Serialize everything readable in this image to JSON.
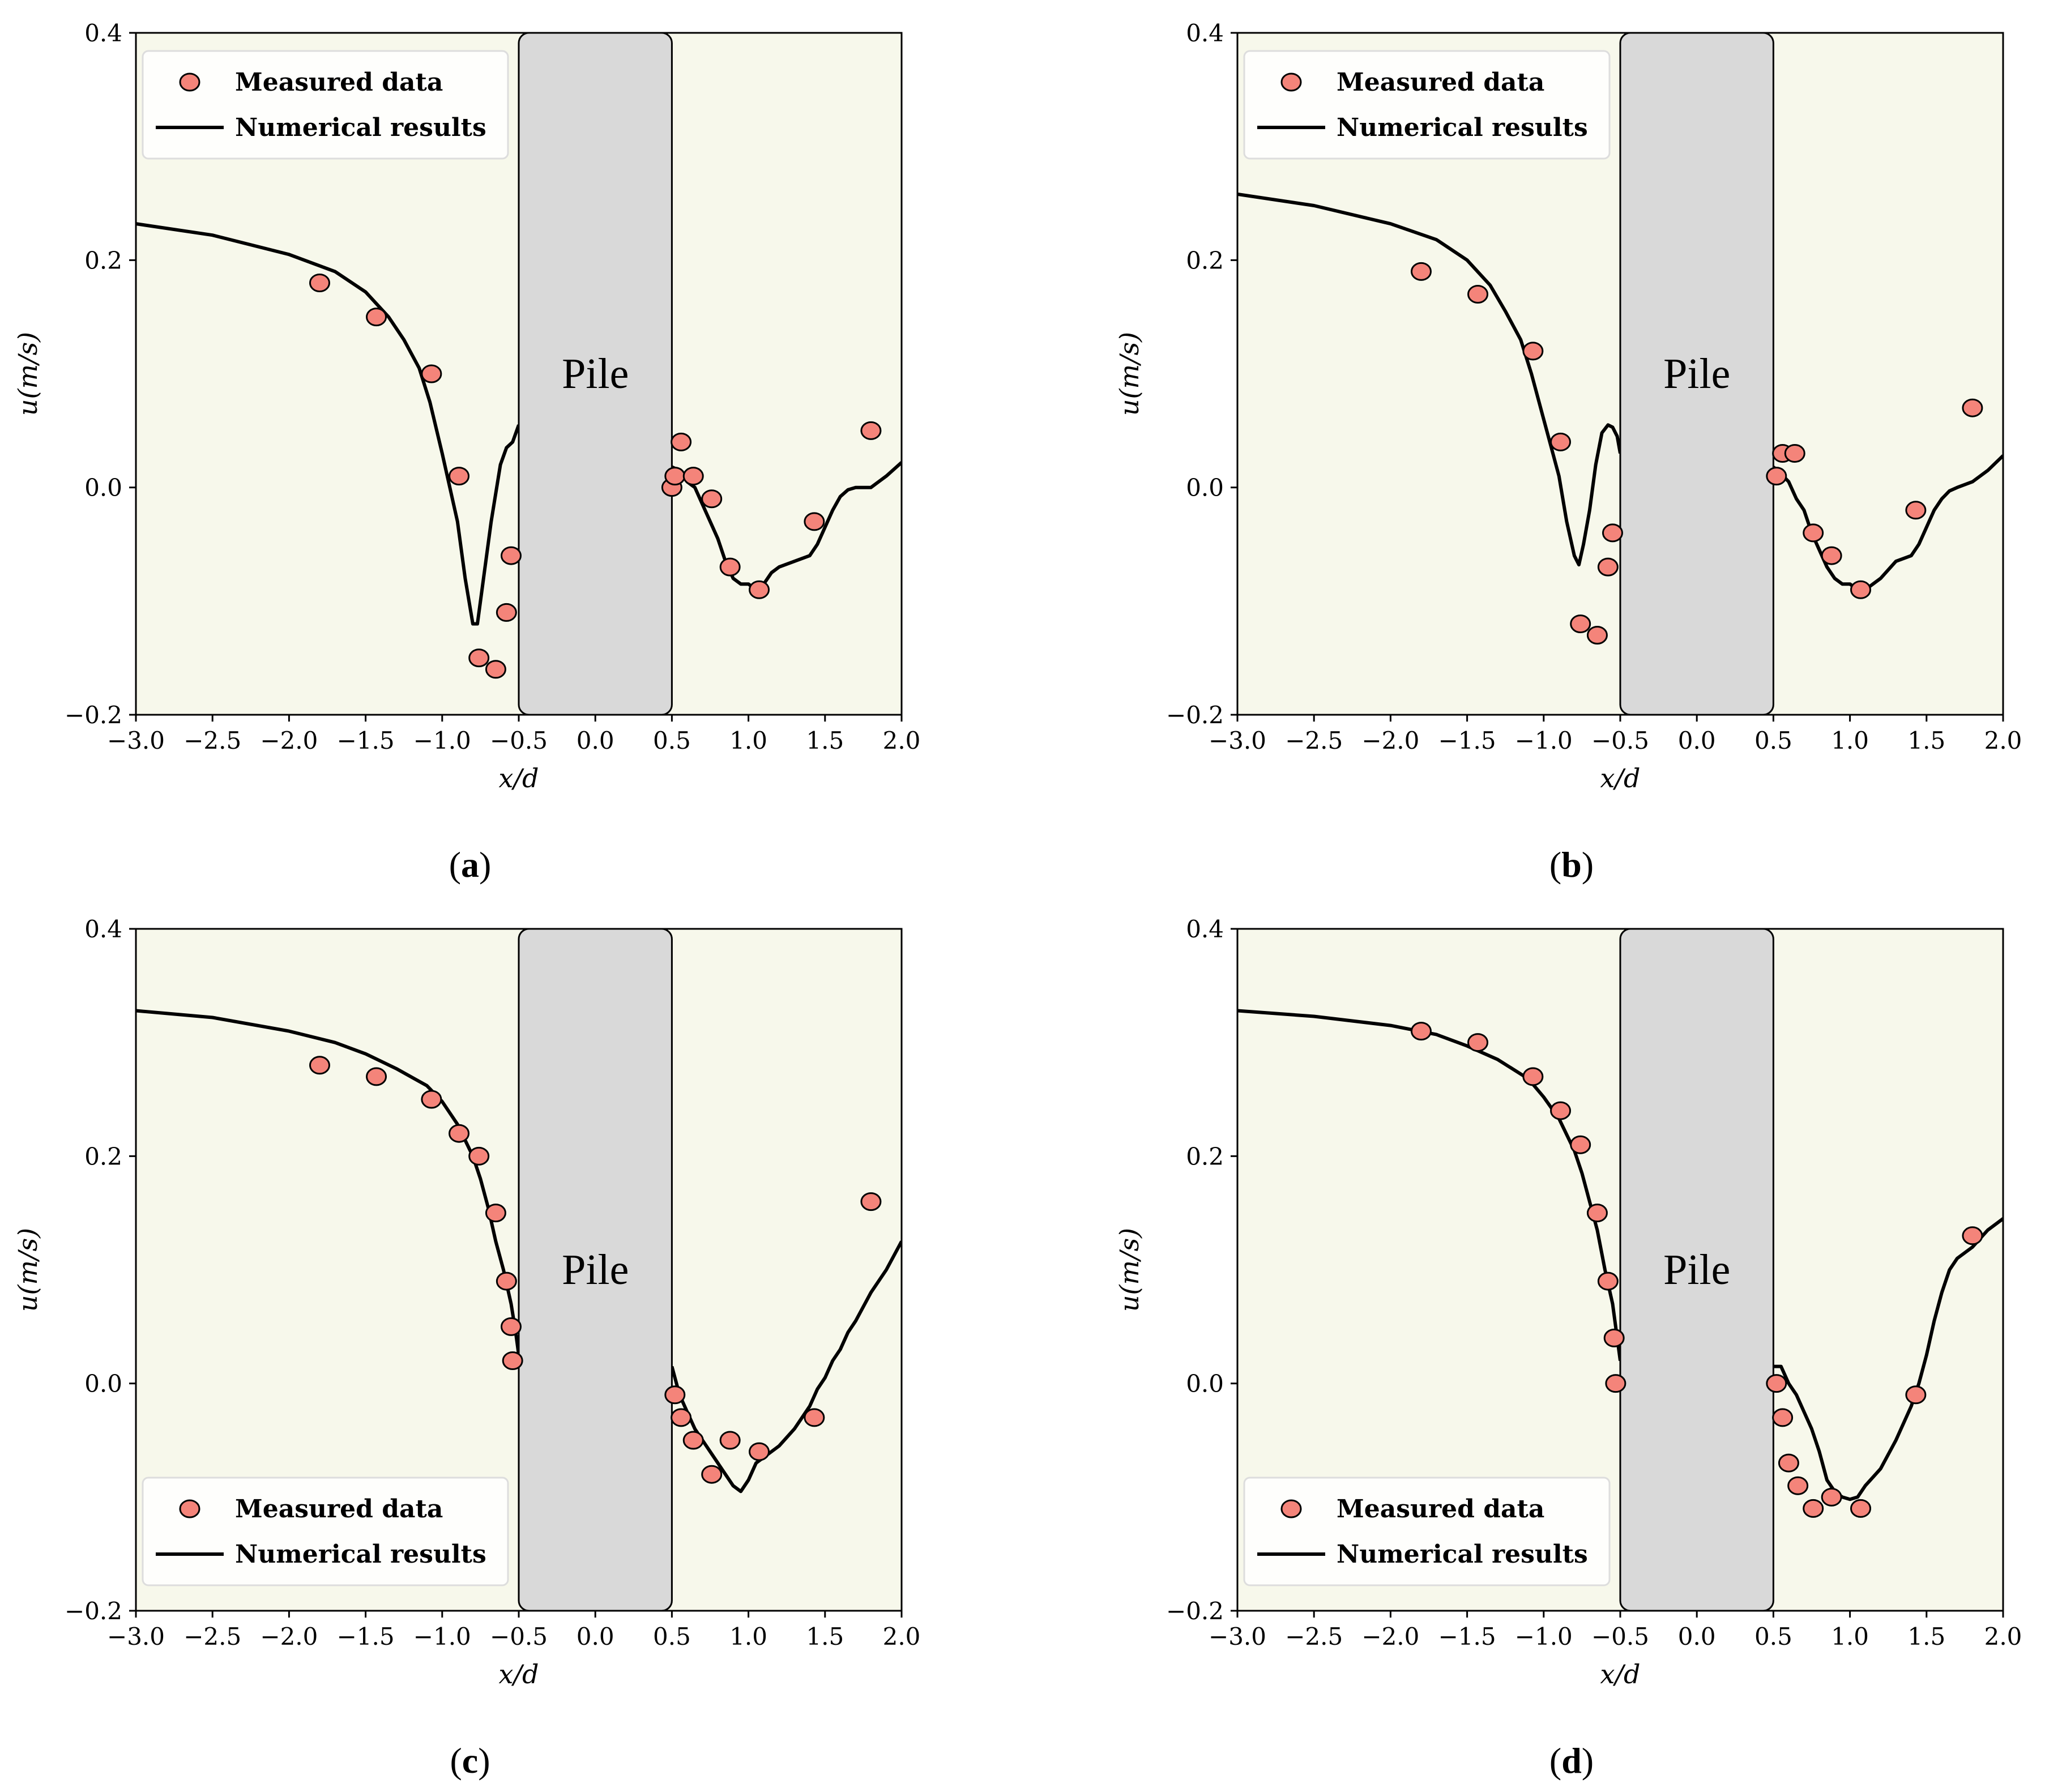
{
  "figure": {
    "captions": [
      "(a)",
      "(b)",
      "(c)",
      "(d)"
    ]
  },
  "colors": {
    "plot_bg": "#f7f8eb",
    "pile_fill": "#d9d9d9",
    "marker_fill": "#f4847a",
    "marker_edge": "#000000",
    "line": "#000000",
    "legend_bg": "#ffffff"
  },
  "chart_data": [
    {
      "panel": "a",
      "type": "scatter",
      "title": "",
      "xlabel": "x/d",
      "ylabel": "u(m/s)",
      "xlim": [
        -3.0,
        2.0
      ],
      "ylim": [
        -0.2,
        0.4
      ],
      "xticks": [
        -3.0,
        -2.5,
        -2.0,
        -1.5,
        -1.0,
        -0.5,
        0.0,
        0.5,
        1.0,
        1.5,
        2.0
      ],
      "xtick_labels": [
        "−3.0",
        "−2.5",
        "−2.0",
        "−1.5",
        "−1.0",
        "−0.5",
        "0.0",
        "0.5",
        "1.0",
        "1.5",
        "2.0"
      ],
      "yticks": [
        -0.2,
        0.0,
        0.2,
        0.4
      ],
      "ytick_labels": [
        "−0.2",
        "0.0",
        "0.2",
        "0.4"
      ],
      "pile": {
        "label": "Pile",
        "x_range": [
          -0.5,
          0.5
        ]
      },
      "legend": {
        "position": "top-left",
        "entries": [
          "Measured data",
          "Numerical results"
        ]
      },
      "caption": "(a)",
      "measured": {
        "name": "Measured data",
        "x": [
          -1.8,
          -1.43,
          -1.07,
          -0.89,
          -0.76,
          -0.65,
          -0.58,
          -0.55,
          0.5,
          0.52,
          0.56,
          0.64,
          0.76,
          0.88,
          1.07,
          1.43,
          1.8
        ],
        "y": [
          0.18,
          0.15,
          0.1,
          0.01,
          -0.15,
          -0.16,
          -0.11,
          -0.06,
          0.0,
          0.01,
          0.04,
          0.01,
          -0.01,
          -0.07,
          -0.09,
          -0.03,
          0.05
        ]
      },
      "numerical": {
        "name": "Numerical results",
        "segments": [
          {
            "x": [
              -3.0,
              -2.5,
              -2.0,
              -1.7,
              -1.5,
              -1.35,
              -1.25,
              -1.15,
              -1.08,
              -1.0,
              -0.95,
              -0.9,
              -0.85,
              -0.8,
              -0.77,
              -0.73,
              -0.68,
              -0.62,
              -0.58,
              -0.54,
              -0.5
            ],
            "y": [
              0.232,
              0.222,
              0.205,
              0.19,
              0.172,
              0.15,
              0.13,
              0.105,
              0.075,
              0.03,
              0.0,
              -0.03,
              -0.08,
              -0.12,
              -0.12,
              -0.08,
              -0.03,
              0.02,
              0.035,
              0.04,
              0.055
            ]
          },
          {
            "x": [
              0.5,
              0.55,
              0.6,
              0.65,
              0.7,
              0.75,
              0.8,
              0.85,
              0.9,
              0.95,
              1.0,
              1.05,
              1.1,
              1.15,
              1.2,
              1.3,
              1.4,
              1.45,
              1.5,
              1.55,
              1.6,
              1.65,
              1.7,
              1.8,
              1.85,
              1.9,
              2.0
            ],
            "y": [
              0.018,
              0.015,
              0.005,
              0.0,
              -0.015,
              -0.03,
              -0.045,
              -0.065,
              -0.08,
              -0.085,
              -0.085,
              -0.09,
              -0.085,
              -0.075,
              -0.07,
              -0.065,
              -0.06,
              -0.05,
              -0.035,
              -0.02,
              -0.008,
              -0.002,
              0.0,
              0.0,
              0.005,
              0.01,
              0.022
            ]
          }
        ]
      }
    },
    {
      "panel": "b",
      "type": "scatter",
      "title": "",
      "xlabel": "x/d",
      "ylabel": "u(m/s)",
      "xlim": [
        -3.0,
        2.0
      ],
      "ylim": [
        -0.2,
        0.4
      ],
      "xticks": [
        -3.0,
        -2.5,
        -2.0,
        -1.5,
        -1.0,
        -0.5,
        0.0,
        0.5,
        1.0,
        1.5,
        2.0
      ],
      "xtick_labels": [
        "−3.0",
        "−2.5",
        "−2.0",
        "−1.5",
        "−1.0",
        "−0.5",
        "0.0",
        "0.5",
        "1.0",
        "1.5",
        "2.0"
      ],
      "yticks": [
        -0.2,
        0.0,
        0.2,
        0.4
      ],
      "ytick_labels": [
        "−0.2",
        "0.0",
        "0.2",
        "0.4"
      ],
      "pile": {
        "label": "Pile",
        "x_range": [
          -0.5,
          0.5
        ]
      },
      "legend": {
        "position": "top-left",
        "entries": [
          "Measured data",
          "Numerical results"
        ]
      },
      "caption": "(b)",
      "measured": {
        "name": "Measured data",
        "x": [
          -1.8,
          -1.43,
          -1.07,
          -0.89,
          -0.76,
          -0.65,
          -0.58,
          -0.55,
          0.52,
          0.56,
          0.64,
          0.76,
          0.88,
          1.07,
          1.43,
          1.8
        ],
        "y": [
          0.19,
          0.17,
          0.12,
          0.04,
          -0.12,
          -0.13,
          -0.07,
          -0.04,
          0.01,
          0.03,
          0.03,
          -0.04,
          -0.06,
          -0.09,
          -0.02,
          0.07
        ]
      },
      "numerical": {
        "name": "Numerical results",
        "segments": [
          {
            "x": [
              -3.0,
              -2.5,
              -2.0,
              -1.7,
              -1.5,
              -1.35,
              -1.25,
              -1.15,
              -1.08,
              -1.0,
              -0.95,
              -0.9,
              -0.85,
              -0.8,
              -0.77,
              -0.74,
              -0.7,
              -0.66,
              -0.62,
              -0.58,
              -0.55,
              -0.52,
              -0.5
            ],
            "y": [
              0.258,
              0.248,
              0.232,
              0.218,
              0.2,
              0.178,
              0.155,
              0.13,
              0.1,
              0.06,
              0.035,
              0.01,
              -0.03,
              -0.06,
              -0.068,
              -0.05,
              -0.02,
              0.02,
              0.048,
              0.055,
              0.053,
              0.045,
              0.03
            ]
          },
          {
            "x": [
              0.5,
              0.55,
              0.6,
              0.65,
              0.7,
              0.75,
              0.8,
              0.85,
              0.9,
              0.95,
              1.0,
              1.05,
              1.1,
              1.15,
              1.2,
              1.3,
              1.4,
              1.45,
              1.5,
              1.55,
              1.6,
              1.65,
              1.7,
              1.8,
              1.85,
              1.9,
              2.0
            ],
            "y": [
              0.018,
              0.012,
              0.005,
              -0.01,
              -0.02,
              -0.04,
              -0.055,
              -0.07,
              -0.08,
              -0.085,
              -0.085,
              -0.09,
              -0.09,
              -0.085,
              -0.08,
              -0.065,
              -0.06,
              -0.05,
              -0.035,
              -0.02,
              -0.01,
              -0.003,
              0.0,
              0.005,
              0.01,
              0.015,
              0.028
            ]
          }
        ]
      }
    },
    {
      "panel": "c",
      "type": "scatter",
      "title": "",
      "xlabel": "x/d",
      "ylabel": "u(m/s)",
      "xlim": [
        -3.0,
        2.0
      ],
      "ylim": [
        -0.2,
        0.4
      ],
      "xticks": [
        -3.0,
        -2.5,
        -2.0,
        -1.5,
        -1.0,
        -0.5,
        0.0,
        0.5,
        1.0,
        1.5,
        2.0
      ],
      "xtick_labels": [
        "−3.0",
        "−2.5",
        "−2.0",
        "−1.5",
        "−1.0",
        "−0.5",
        "0.0",
        "0.5",
        "1.0",
        "1.5",
        "2.0"
      ],
      "yticks": [
        -0.2,
        0.0,
        0.2,
        0.4
      ],
      "ytick_labels": [
        "−0.2",
        "0.0",
        "0.2",
        "0.4"
      ],
      "pile": {
        "label": "Pile",
        "x_range": [
          -0.5,
          0.5
        ]
      },
      "legend": {
        "position": "bottom-left",
        "entries": [
          "Measured data",
          "Numerical results"
        ]
      },
      "caption": "(c)",
      "measured": {
        "name": "Measured data",
        "x": [
          -1.8,
          -1.43,
          -1.07,
          -0.89,
          -0.76,
          -0.65,
          -0.58,
          -0.55,
          -0.54,
          0.52,
          0.56,
          0.64,
          0.76,
          0.88,
          1.07,
          1.43,
          1.8
        ],
        "y": [
          0.28,
          0.27,
          0.25,
          0.22,
          0.2,
          0.15,
          0.09,
          0.05,
          0.02,
          -0.01,
          -0.03,
          -0.05,
          -0.08,
          -0.05,
          -0.06,
          -0.03,
          0.16
        ]
      },
      "numerical": {
        "name": "Numerical results",
        "segments": [
          {
            "x": [
              -3.0,
              -2.5,
              -2.0,
              -1.7,
              -1.5,
              -1.3,
              -1.1,
              -1.0,
              -0.9,
              -0.8,
              -0.75,
              -0.7,
              -0.65,
              -0.6,
              -0.55,
              -0.52,
              -0.5
            ],
            "y": [
              0.328,
              0.322,
              0.31,
              0.3,
              0.29,
              0.277,
              0.262,
              0.248,
              0.228,
              0.2,
              0.18,
              0.155,
              0.125,
              0.1,
              0.07,
              0.045,
              0.025
            ]
          },
          {
            "x": [
              0.5,
              0.52,
              0.55,
              0.6,
              0.65,
              0.7,
              0.75,
              0.8,
              0.85,
              0.9,
              0.95,
              1.0,
              1.05,
              1.1,
              1.2,
              1.3,
              1.4,
              1.45,
              1.5,
              1.55,
              1.6,
              1.65,
              1.7,
              1.8,
              1.9,
              2.0
            ],
            "y": [
              0.015,
              0.005,
              -0.01,
              -0.025,
              -0.04,
              -0.05,
              -0.06,
              -0.07,
              -0.08,
              -0.09,
              -0.095,
              -0.085,
              -0.07,
              -0.065,
              -0.055,
              -0.04,
              -0.02,
              -0.005,
              0.005,
              0.02,
              0.03,
              0.045,
              0.055,
              0.08,
              0.1,
              0.125
            ]
          }
        ]
      }
    },
    {
      "panel": "d",
      "type": "scatter",
      "title": "",
      "xlabel": "x/d",
      "ylabel": "u(m/s)",
      "xlim": [
        -3.0,
        2.0
      ],
      "ylim": [
        -0.2,
        0.4
      ],
      "xticks": [
        -3.0,
        -2.5,
        -2.0,
        -1.5,
        -1.0,
        -0.5,
        0.0,
        0.5,
        1.0,
        1.5,
        2.0
      ],
      "xtick_labels": [
        "−3.0",
        "−2.5",
        "−2.0",
        "−1.5",
        "−1.0",
        "−0.5",
        "0.0",
        "0.5",
        "1.0",
        "1.5",
        "2.0"
      ],
      "yticks": [
        -0.2,
        0.0,
        0.2,
        0.4
      ],
      "ytick_labels": [
        "−0.2",
        "0.0",
        "0.2",
        "0.4"
      ],
      "pile": {
        "label": "Pile",
        "x_range": [
          -0.5,
          0.5
        ]
      },
      "legend": {
        "position": "bottom-left",
        "entries": [
          "Measured data",
          "Numerical results"
        ]
      },
      "caption": "(d)",
      "measured": {
        "name": "Measured data",
        "x": [
          -1.8,
          -1.43,
          -1.07,
          -0.89,
          -0.76,
          -0.65,
          -0.58,
          -0.54,
          -0.53,
          0.52,
          0.56,
          0.6,
          0.66,
          0.76,
          0.88,
          1.07,
          1.43,
          1.8
        ],
        "y": [
          0.31,
          0.3,
          0.27,
          0.24,
          0.21,
          0.15,
          0.09,
          0.04,
          0.0,
          0.0,
          -0.03,
          -0.07,
          -0.09,
          -0.11,
          -0.1,
          -0.11,
          -0.01,
          0.13
        ]
      },
      "numerical": {
        "name": "Numerical results",
        "segments": [
          {
            "x": [
              -3.0,
              -2.5,
              -2.0,
              -1.7,
              -1.5,
              -1.3,
              -1.1,
              -1.0,
              -0.9,
              -0.8,
              -0.75,
              -0.7,
              -0.65,
              -0.6,
              -0.55,
              -0.52,
              -0.5
            ],
            "y": [
              0.328,
              0.323,
              0.315,
              0.307,
              0.297,
              0.285,
              0.268,
              0.252,
              0.233,
              0.205,
              0.185,
              0.16,
              0.135,
              0.1,
              0.07,
              0.04,
              0.02
            ]
          },
          {
            "x": [
              0.5,
              0.55,
              0.6,
              0.65,
              0.7,
              0.75,
              0.8,
              0.85,
              0.9,
              0.95,
              1.0,
              1.05,
              1.1,
              1.2,
              1.3,
              1.4,
              1.45,
              1.5,
              1.55,
              1.6,
              1.65,
              1.7,
              1.75,
              1.8,
              1.9,
              2.0
            ],
            "y": [
              0.015,
              0.015,
              0.0,
              -0.01,
              -0.025,
              -0.04,
              -0.06,
              -0.085,
              -0.095,
              -0.1,
              -0.102,
              -0.1,
              -0.09,
              -0.075,
              -0.05,
              -0.02,
              0.0,
              0.025,
              0.055,
              0.08,
              0.1,
              0.11,
              0.115,
              0.12,
              0.135,
              0.145
            ]
          }
        ]
      }
    }
  ]
}
